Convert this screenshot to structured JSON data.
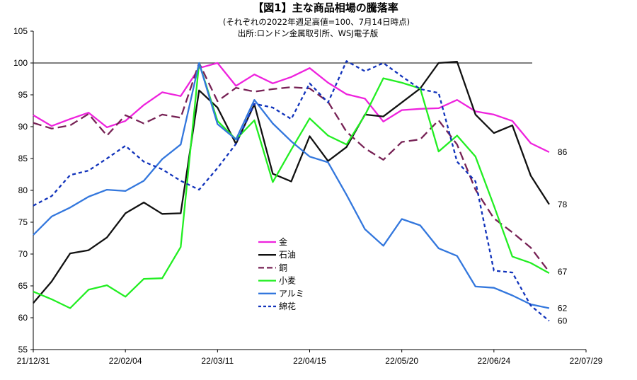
{
  "chart_data": {
    "type": "line",
    "title": "【図1】主な商品相場の騰落率",
    "subtitle_lines": [
      "(それぞれの2022年週足高値=100、7月14日時点)",
      "出所:ロンドン金属取引所、WSJ電子版"
    ],
    "x_ticks": [
      "21/12/31",
      "22/02/04",
      "22/03/11",
      "22/04/15",
      "22/05/20",
      "22/06/24",
      "22/07/29"
    ],
    "x_range_weeks": [
      0,
      30
    ],
    "ylim": [
      55,
      105
    ],
    "y_ticks": [
      55,
      60,
      65,
      70,
      75,
      80,
      85,
      90,
      95,
      100,
      105
    ],
    "reference_line": 100,
    "grid": false,
    "legend_position": "center",
    "series": [
      {
        "name": "金",
        "color": "#ee22dd",
        "style": "solid",
        "end_label": "86",
        "values": [
          91.8,
          90.1,
          91.2,
          92.2,
          89.9,
          90.9,
          93.4,
          95.4,
          94.8,
          99.2,
          100.0,
          96.4,
          98.2,
          96.8,
          97.8,
          99.2,
          96.9,
          95.1,
          94.4,
          90.8,
          92.6,
          92.8,
          92.9,
          94.2,
          92.4,
          91.9,
          90.9,
          87.4,
          86.0
        ]
      },
      {
        "name": "石油",
        "color": "#111111",
        "style": "solid",
        "end_label": "78",
        "values": [
          62.3,
          65.7,
          70.1,
          70.6,
          72.6,
          76.4,
          78.1,
          76.3,
          76.4,
          95.7,
          93.0,
          87.3,
          93.5,
          82.6,
          81.4,
          88.5,
          84.6,
          86.8,
          91.9,
          91.6,
          93.8,
          96.0,
          100.0,
          100.2,
          91.9,
          89.0,
          90.2,
          82.3,
          77.8
        ]
      },
      {
        "name": "銅",
        "color": "#772255",
        "style": "dash",
        "end_label": "67",
        "values": [
          90.6,
          89.7,
          90.2,
          92.0,
          88.6,
          91.8,
          90.5,
          91.9,
          91.4,
          100.0,
          94.0,
          96.1,
          95.5,
          95.9,
          96.2,
          96.0,
          93.9,
          89.2,
          86.6,
          84.8,
          87.6,
          88.0,
          91.0,
          87.2,
          80.1,
          75.6,
          73.4,
          71.0,
          67.2
        ]
      },
      {
        "name": "小麦",
        "color": "#22ee22",
        "style": "solid",
        "end_label": "",
        "values": [
          64.1,
          62.9,
          61.5,
          64.4,
          65.1,
          63.3,
          66.1,
          66.2,
          71.1,
          100.0,
          90.9,
          88.0,
          91.0,
          81.3,
          86.4,
          91.3,
          88.6,
          87.2,
          91.8,
          97.6,
          96.9,
          96.0,
          86.1,
          88.6,
          85.3,
          77.6,
          69.6,
          68.6,
          67.0
        ]
      },
      {
        "name": "アルミ",
        "color": "#3377dd",
        "style": "solid",
        "end_label": "62",
        "values": [
          73.0,
          75.9,
          77.3,
          79.0,
          80.1,
          79.9,
          81.5,
          84.9,
          87.2,
          100.0,
          90.4,
          88.0,
          94.2,
          90.5,
          87.7,
          85.3,
          84.4,
          79.3,
          73.9,
          71.3,
          75.5,
          74.5,
          70.9,
          69.7,
          64.9,
          64.7,
          63.5,
          62.1,
          61.5
        ]
      },
      {
        "name": "綿花",
        "color": "#1133bb",
        "style": "dot",
        "end_label": "60",
        "values": [
          77.6,
          79.1,
          82.4,
          83.1,
          85.0,
          87.0,
          84.5,
          83.3,
          81.5,
          80.1,
          83.5,
          87.3,
          93.6,
          93.0,
          91.2,
          96.8,
          93.8,
          100.3,
          98.7,
          100.0,
          97.9,
          95.9,
          95.3,
          84.5,
          81.4,
          67.4,
          67.1,
          61.9,
          59.5
        ]
      }
    ]
  }
}
